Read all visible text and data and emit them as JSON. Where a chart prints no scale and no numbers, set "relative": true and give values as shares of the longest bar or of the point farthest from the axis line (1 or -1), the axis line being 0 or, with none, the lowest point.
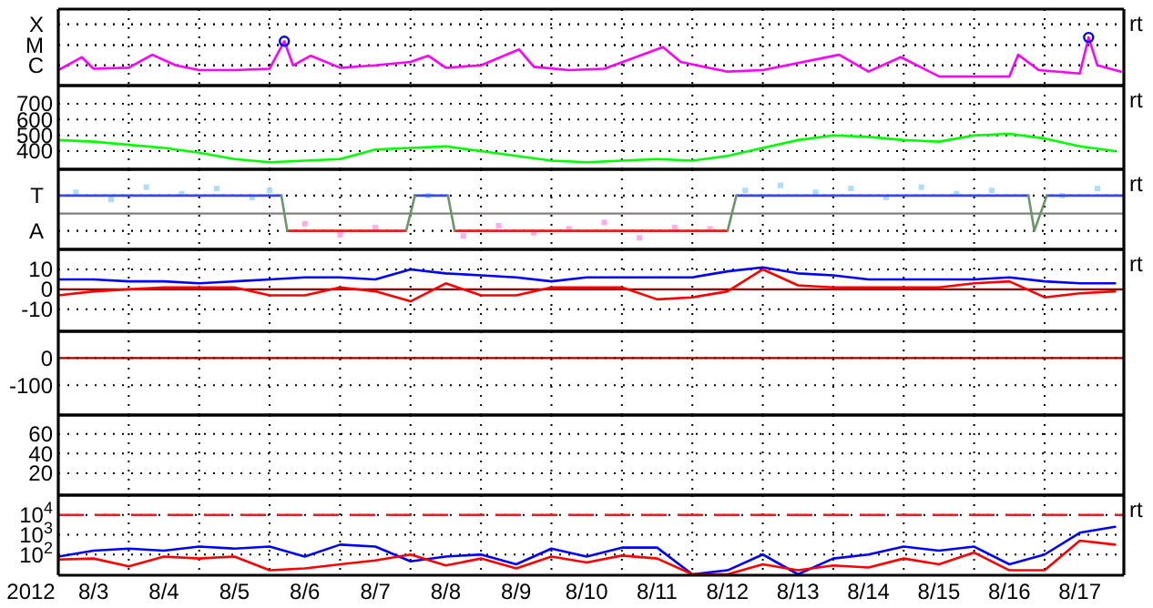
{
  "chart_data": [
    {
      "type": "line",
      "relative": true,
      "grid": true,
      "tick_labels": false,
      "xlim": [
        "2012-08-03T00:00",
        "2012-08-18T03:00"
      ],
      "xticks": [
        {
          "value": "2012-08-04T00:00",
          "label": null
        },
        {
          "value": "2012-08-05T00:00",
          "label": null
        },
        {
          "value": "2012-08-06T00:00",
          "label": null
        },
        {
          "value": "2012-08-07T00:00",
          "label": null
        },
        {
          "value": "2012-08-08T00:00",
          "label": null
        },
        {
          "value": "2012-08-09T00:00",
          "label": null
        },
        {
          "value": "2012-08-10T00:00",
          "label": null
        },
        {
          "value": "2012-08-11T00:00",
          "label": null
        },
        {
          "value": "2012-08-12T00:00",
          "label": null
        },
        {
          "value": "2012-08-13T00:00",
          "label": null
        },
        {
          "value": "2012-08-14T00:00",
          "label": null
        },
        {
          "value": "2012-08-15T00:00",
          "label": null
        },
        {
          "value": "2012-08-16T00:00",
          "label": null
        },
        {
          "value": "2012-08-17T00:00",
          "label": null
        }
      ],
      "ref_lines": [
        {
          "axis": "y",
          "value": 1.27,
          "label": "X",
          "color": "#000000",
          "line_style": "dotted"
        },
        {
          "axis": "y",
          "value": 0.84,
          "label": "M",
          "color": "#000000",
          "line_style": "dotted"
        },
        {
          "axis": "y",
          "value": 0.42,
          "label": "C",
          "color": "#000000",
          "line_style": "dotted"
        }
      ],
      "series": [
        {
          "color": "#ff00ff",
          "x": [
            "2012-08-03T00:00",
            "2012-08-03T08:00",
            "2012-08-03T12:00",
            "2012-08-04T00:00",
            "2012-08-04T08:00",
            "2012-08-04T16:00",
            "2012-08-05T00:00",
            "2012-08-05T12:00",
            "2012-08-06T00:00",
            "2012-08-06T05:00",
            "2012-08-06T08:00",
            "2012-08-06T14:00",
            "2012-08-07T00:00",
            "2012-08-07T12:00",
            "2012-08-08T00:00",
            "2012-08-08T06:00",
            "2012-08-08T12:00",
            "2012-08-09T00:00",
            "2012-08-09T13:00",
            "2012-08-09T18:00",
            "2012-08-10T06:00",
            "2012-08-10T18:00",
            "2012-08-11T14:00",
            "2012-08-11T20:00",
            "2012-08-12T12:00",
            "2012-08-13T00:00",
            "2012-08-14T02:00",
            "2012-08-14T12:00",
            "2012-08-14T23:00",
            "2012-08-15T12:00",
            "2012-08-16T12:00",
            "2012-08-16T15:00",
            "2012-08-16T22:00",
            "2012-08-17T12:00",
            "2012-08-17T15:00",
            "2012-08-17T18:00",
            "2012-08-18T02:00"
          ],
          "values": [
            0.32,
            0.59,
            0.35,
            0.37,
            0.64,
            0.42,
            0.32,
            0.32,
            0.35,
            0.92,
            0.42,
            0.62,
            0.37,
            0.42,
            0.49,
            0.62,
            0.37,
            0.42,
            0.75,
            0.39,
            0.32,
            0.35,
            0.8,
            0.49,
            0.29,
            0.32,
            0.64,
            0.29,
            0.59,
            0.19,
            0.19,
            0.64,
            0.32,
            0.25,
            1,
            0.42,
            0.29
          ]
        },
        {
          "type": "scatter",
          "marker": "circle",
          "color": "#0000ff",
          "x": [
            "2012-08-06T05:00",
            "2012-08-17T15:00"
          ],
          "values": [
            0.92,
            1
          ]
        }
      ],
      "annotations": [
        "rt"
      ]
    },
    {
      "type": "line",
      "grid": true,
      "tick_labels": "y",
      "xlim": [
        "2012-08-03T00:00",
        "2012-08-18T03:00"
      ],
      "ylim": [
        285,
        815
      ],
      "yticks": [
        400,
        500,
        600,
        700
      ],
      "xticks": [
        {
          "value": "2012-08-04T00:00",
          "label": null
        },
        {
          "value": "2012-08-05T00:00",
          "label": null
        },
        {
          "value": "2012-08-06T00:00",
          "label": null
        },
        {
          "value": "2012-08-07T00:00",
          "label": null
        },
        {
          "value": "2012-08-08T00:00",
          "label": null
        },
        {
          "value": "2012-08-09T00:00",
          "label": null
        },
        {
          "value": "2012-08-10T00:00",
          "label": null
        },
        {
          "value": "2012-08-11T00:00",
          "label": null
        },
        {
          "value": "2012-08-12T00:00",
          "label": null
        },
        {
          "value": "2012-08-13T00:00",
          "label": null
        },
        {
          "value": "2012-08-14T00:00",
          "label": null
        },
        {
          "value": "2012-08-15T00:00",
          "label": null
        },
        {
          "value": "2012-08-16T00:00",
          "label": null
        },
        {
          "value": "2012-08-17T00:00",
          "label": null
        }
      ],
      "x": [
        "2012-08-03T00:00",
        "2012-08-03T12:00",
        "2012-08-04T00:00",
        "2012-08-04T12:00",
        "2012-08-05T00:00",
        "2012-08-05T12:00",
        "2012-08-06T00:00",
        "2012-08-06T12:00",
        "2012-08-07T00:00",
        "2012-08-07T12:00",
        "2012-08-08T00:00",
        "2012-08-08T12:00",
        "2012-08-09T00:00",
        "2012-08-09T12:00",
        "2012-08-10T00:00",
        "2012-08-10T12:00",
        "2012-08-11T00:00",
        "2012-08-11T12:00",
        "2012-08-12T00:00",
        "2012-08-12T12:00",
        "2012-08-13T00:00",
        "2012-08-13T12:00",
        "2012-08-14T00:00",
        "2012-08-14T12:00",
        "2012-08-15T00:00",
        "2012-08-15T12:00",
        "2012-08-16T00:00",
        "2012-08-16T12:00",
        "2012-08-17T00:00",
        "2012-08-17T12:00",
        "2012-08-18T00:00"
      ],
      "series": [
        {
          "color": "#00ff00",
          "values": [
            470,
            460,
            440,
            420,
            390,
            350,
            330,
            340,
            350,
            410,
            420,
            430,
            400,
            370,
            340,
            330,
            340,
            350,
            340,
            370,
            420,
            470,
            500,
            490,
            470,
            460,
            500,
            510,
            480,
            430,
            400
          ]
        }
      ],
      "annotations": [
        "rt"
      ]
    },
    {
      "type": "line",
      "relative": true,
      "grid": true,
      "tick_labels": false,
      "xlim": [
        "2012-08-03T00:00",
        "2012-08-18T03:00"
      ],
      "xticks": [
        {
          "value": "2012-08-04T00:00",
          "label": null
        },
        {
          "value": "2012-08-05T00:00",
          "label": null
        },
        {
          "value": "2012-08-06T00:00",
          "label": null
        },
        {
          "value": "2012-08-07T00:00",
          "label": null
        },
        {
          "value": "2012-08-08T00:00",
          "label": null
        },
        {
          "value": "2012-08-09T00:00",
          "label": null
        },
        {
          "value": "2012-08-10T00:00",
          "label": null
        },
        {
          "value": "2012-08-11T00:00",
          "label": null
        },
        {
          "value": "2012-08-12T00:00",
          "label": null
        },
        {
          "value": "2012-08-13T00:00",
          "label": null
        },
        {
          "value": "2012-08-14T00:00",
          "label": null
        },
        {
          "value": "2012-08-15T00:00",
          "label": null
        },
        {
          "value": "2012-08-16T00:00",
          "label": null
        },
        {
          "value": "2012-08-17T00:00",
          "label": null
        }
      ],
      "ref_lines": [
        {
          "axis": "y",
          "value": 0.56,
          "color": "#808080"
        },
        {
          "axis": "y",
          "value": 0.84,
          "label": "T",
          "color": "#000000",
          "line_style": "dotted"
        },
        {
          "axis": "y",
          "value": 0.29,
          "label": "A",
          "color": "#000000",
          "line_style": "dotted"
        }
      ],
      "series": [
        {
          "type": "scatter",
          "marker": "square",
          "color": "#aaddff",
          "x": [
            "2012-08-03T06:00",
            "2012-08-03T18:00",
            "2012-08-04T06:00",
            "2012-08-04T18:00",
            "2012-08-05T06:00",
            "2012-08-05T18:00",
            "2012-08-06T00:00",
            "2012-08-08T06:00",
            "2012-08-12T18:00",
            "2012-08-13T06:00",
            "2012-08-13T18:00",
            "2012-08-14T06:00",
            "2012-08-14T18:00",
            "2012-08-15T06:00",
            "2012-08-15T18:00",
            "2012-08-16T06:00",
            "2012-08-17T06:00",
            "2012-08-17T18:00"
          ],
          "values": [
            0.89,
            0.78,
            0.97,
            0.87,
            0.95,
            0.81,
            0.92,
            0.84,
            0.92,
            1,
            0.89,
            0.95,
            0.81,
            0.97,
            0.87,
            0.92,
            0.84,
            0.95
          ]
        },
        {
          "type": "scatter",
          "marker": "square",
          "color": "#ffaaee",
          "x": [
            "2012-08-06T12:00",
            "2012-08-07T00:00",
            "2012-08-07T12:00",
            "2012-08-08T18:00",
            "2012-08-09T06:00",
            "2012-08-09T18:00",
            "2012-08-10T06:00",
            "2012-08-10T18:00",
            "2012-08-11T06:00",
            "2012-08-11T18:00",
            "2012-08-12T06:00"
          ],
          "values": [
            0.4,
            0.23,
            0.34,
            0.21,
            0.37,
            0.26,
            0.32,
            0.42,
            0.18,
            0.34,
            0.32
          ]
        },
        {
          "color": "#3344ff",
          "x": [
            "2012-08-03T00:00",
            "2012-08-06T04:00",
            "2012-08-07T00:00",
            "2012-08-08T01:30",
            "2012-08-08T12:45",
            "2012-08-10T00:00",
            "2012-08-12T15:00",
            "2012-08-16T18:30",
            "2012-08-17T00:00",
            "2012-08-17T00:45",
            "2012-08-18T03:00"
          ],
          "values": [
            0.84,
            0.84,
            null,
            0.84,
            0.84,
            null,
            0.84,
            0.84,
            null,
            0.84,
            0.84
          ]
        },
        {
          "color": "#dd2222",
          "x": [
            "2012-08-06T06:00",
            "2012-08-07T22:30",
            "2012-08-08T00:00",
            "2012-08-08T15:00",
            "2012-08-12T12:00"
          ],
          "values": [
            0.29,
            0.29,
            null,
            0.29,
            0.29
          ]
        },
        {
          "color": "#669966",
          "x": [
            "2012-08-06T04:00",
            "2012-08-06T06:00",
            "2012-08-07T00:00",
            "2012-08-07T22:30",
            "2012-08-08T01:30",
            "2012-08-08T06:00",
            "2012-08-08T12:45",
            "2012-08-08T15:00",
            "2012-08-10T00:00",
            "2012-08-12T12:00",
            "2012-08-12T15:00",
            "2012-08-14T00:00",
            "2012-08-16T18:30",
            "2012-08-16T20:30",
            "2012-08-17T00:45"
          ],
          "values": [
            0.84,
            0.29,
            null,
            0.29,
            0.84,
            null,
            0.84,
            0.29,
            null,
            0.29,
            0.84,
            null,
            0.84,
            0.29,
            0.84
          ]
        }
      ],
      "annotations": [
        "rt"
      ]
    },
    {
      "type": "line",
      "grid": true,
      "tick_labels": "y",
      "xlim": [
        "2012-08-03T00:00",
        "2012-08-18T03:00"
      ],
      "ylim": [
        -21,
        20
      ],
      "yticks": [
        10,
        0,
        -10
      ],
      "xticks": [
        {
          "value": "2012-08-04T00:00",
          "label": null
        },
        {
          "value": "2012-08-05T00:00",
          "label": null
        },
        {
          "value": "2012-08-06T00:00",
          "label": null
        },
        {
          "value": "2012-08-07T00:00",
          "label": null
        },
        {
          "value": "2012-08-08T00:00",
          "label": null
        },
        {
          "value": "2012-08-09T00:00",
          "label": null
        },
        {
          "value": "2012-08-10T00:00",
          "label": null
        },
        {
          "value": "2012-08-11T00:00",
          "label": null
        },
        {
          "value": "2012-08-12T00:00",
          "label": null
        },
        {
          "value": "2012-08-13T00:00",
          "label": null
        },
        {
          "value": "2012-08-14T00:00",
          "label": null
        },
        {
          "value": "2012-08-15T00:00",
          "label": null
        },
        {
          "value": "2012-08-16T00:00",
          "label": null
        },
        {
          "value": "2012-08-17T00:00",
          "label": null
        }
      ],
      "ref_lines": [
        {
          "axis": "y",
          "value": 0,
          "color": "#990000"
        }
      ],
      "x": [
        "2012-08-03T00:00",
        "2012-08-03T12:00",
        "2012-08-04T00:00",
        "2012-08-04T12:00",
        "2012-08-05T00:00",
        "2012-08-05T12:00",
        "2012-08-06T00:00",
        "2012-08-06T12:00",
        "2012-08-07T00:00",
        "2012-08-07T12:00",
        "2012-08-08T00:00",
        "2012-08-08T12:00",
        "2012-08-09T00:00",
        "2012-08-09T12:00",
        "2012-08-10T00:00",
        "2012-08-10T12:00",
        "2012-08-11T00:00",
        "2012-08-11T12:00",
        "2012-08-12T00:00",
        "2012-08-12T12:00",
        "2012-08-13T00:00",
        "2012-08-13T12:00",
        "2012-08-14T00:00",
        "2012-08-14T12:00",
        "2012-08-15T00:00",
        "2012-08-15T12:00",
        "2012-08-16T00:00",
        "2012-08-16T12:00",
        "2012-08-17T00:00",
        "2012-08-17T12:00",
        "2012-08-18T00:00"
      ],
      "series": [
        {
          "color": "#0000ff",
          "values": [
            5,
            5,
            4,
            4,
            3,
            4,
            5,
            6,
            6,
            5,
            10,
            8,
            7,
            6,
            4,
            6,
            6,
            6,
            6,
            9,
            11,
            8,
            7,
            5,
            5,
            5,
            5,
            6,
            4,
            3,
            3
          ]
        },
        {
          "color": "#ff0000",
          "values": [
            -3,
            -1,
            0,
            1,
            1,
            1,
            -3,
            -3,
            1,
            -1,
            -6,
            3,
            -3,
            -3,
            1,
            1,
            1,
            -5,
            -4,
            -1,
            10,
            2,
            1,
            1,
            1,
            1,
            3,
            4,
            -4,
            -2,
            -1
          ]
        }
      ],
      "annotations": [
        "rt"
      ]
    },
    {
      "type": "line",
      "grid": true,
      "tick_labels": "y",
      "xlim": [
        "2012-08-03T00:00",
        "2012-08-18T03:00"
      ],
      "ylim": [
        -209,
        98
      ],
      "yticks": [
        0,
        -100
      ],
      "xticks": [
        {
          "value": "2012-08-04T00:00",
          "label": null
        },
        {
          "value": "2012-08-05T00:00",
          "label": null
        },
        {
          "value": "2012-08-06T00:00",
          "label": null
        },
        {
          "value": "2012-08-07T00:00",
          "label": null
        },
        {
          "value": "2012-08-08T00:00",
          "label": null
        },
        {
          "value": "2012-08-09T00:00",
          "label": null
        },
        {
          "value": "2012-08-10T00:00",
          "label": null
        },
        {
          "value": "2012-08-11T00:00",
          "label": null
        },
        {
          "value": "2012-08-12T00:00",
          "label": null
        },
        {
          "value": "2012-08-13T00:00",
          "label": null
        },
        {
          "value": "2012-08-14T00:00",
          "label": null
        },
        {
          "value": "2012-08-15T00:00",
          "label": null
        },
        {
          "value": "2012-08-16T00:00",
          "label": null
        },
        {
          "value": "2012-08-17T00:00",
          "label": null
        }
      ],
      "ref_lines": [
        {
          "axis": "y",
          "value": 0,
          "color": "#990000"
        }
      ]
    },
    {
      "type": "line",
      "grid": true,
      "tick_labels": "y",
      "xlim": [
        "2012-08-03T00:00",
        "2012-08-18T03:00"
      ],
      "ylim": [
        -2,
        79
      ],
      "yticks": [
        60,
        40,
        20
      ],
      "xticks": [
        {
          "value": "2012-08-04T00:00",
          "label": null
        },
        {
          "value": "2012-08-05T00:00",
          "label": null
        },
        {
          "value": "2012-08-06T00:00",
          "label": null
        },
        {
          "value": "2012-08-07T00:00",
          "label": null
        },
        {
          "value": "2012-08-08T00:00",
          "label": null
        },
        {
          "value": "2012-08-09T00:00",
          "label": null
        },
        {
          "value": "2012-08-10T00:00",
          "label": null
        },
        {
          "value": "2012-08-11T00:00",
          "label": null
        },
        {
          "value": "2012-08-12T00:00",
          "label": null
        },
        {
          "value": "2012-08-13T00:00",
          "label": null
        },
        {
          "value": "2012-08-14T00:00",
          "label": null
        },
        {
          "value": "2012-08-15T00:00",
          "label": null
        },
        {
          "value": "2012-08-16T00:00",
          "label": null
        },
        {
          "value": "2012-08-17T00:00",
          "label": null
        }
      ]
    },
    {
      "type": "line",
      "log": "y",
      "grid": true,
      "xlim": [
        "2012-08-03T00:00",
        "2012-08-18T03:00"
      ],
      "ylim": [
        9,
        100000
      ],
      "xlabel": "2012",
      "yticks": [
        {
          "value": 10000,
          "label": "10$^{4}$"
        },
        {
          "value": 1000,
          "label": "10$^{3}$"
        },
        {
          "value": 100,
          "label": "10$^{2}$"
        }
      ],
      "xticks": [
        {
          "value": "2012-08-03T12:00",
          "label": "8/3"
        },
        {
          "value": "2012-08-04T00:00",
          "label": null
        },
        {
          "value": "2012-08-04T12:00",
          "label": "8/4"
        },
        {
          "value": "2012-08-05T00:00",
          "label": null
        },
        {
          "value": "2012-08-05T12:00",
          "label": "8/5"
        },
        {
          "value": "2012-08-06T00:00",
          "label": null
        },
        {
          "value": "2012-08-06T12:00",
          "label": "8/6"
        },
        {
          "value": "2012-08-07T00:00",
          "label": null
        },
        {
          "value": "2012-08-07T12:00",
          "label": "8/7"
        },
        {
          "value": "2012-08-08T00:00",
          "label": null
        },
        {
          "value": "2012-08-08T12:00",
          "label": "8/8"
        },
        {
          "value": "2012-08-09T00:00",
          "label": null
        },
        {
          "value": "2012-08-09T12:00",
          "label": "8/9"
        },
        {
          "value": "2012-08-10T00:00",
          "label": null
        },
        {
          "value": "2012-08-10T12:00",
          "label": "8/10"
        },
        {
          "value": "2012-08-11T00:00",
          "label": null
        },
        {
          "value": "2012-08-11T12:00",
          "label": "8/11"
        },
        {
          "value": "2012-08-12T00:00",
          "label": null
        },
        {
          "value": "2012-08-12T12:00",
          "label": "8/12"
        },
        {
          "value": "2012-08-13T00:00",
          "label": null
        },
        {
          "value": "2012-08-13T12:00",
          "label": "8/13"
        },
        {
          "value": "2012-08-14T00:00",
          "label": null
        },
        {
          "value": "2012-08-14T12:00",
          "label": "8/14"
        },
        {
          "value": "2012-08-15T00:00",
          "label": null
        },
        {
          "value": "2012-08-15T12:00",
          "label": "8/15"
        },
        {
          "value": "2012-08-16T00:00",
          "label": null
        },
        {
          "value": "2012-08-16T12:00",
          "label": "8/16"
        },
        {
          "value": "2012-08-17T00:00",
          "label": null
        },
        {
          "value": "2012-08-17T12:00",
          "label": "8/17"
        }
      ],
      "ref_lines": [
        {
          "axis": "y",
          "value": 10000,
          "color": "#dd2222",
          "line_style": "dashed"
        }
      ],
      "x": [
        "2012-08-03T00:00",
        "2012-08-03T12:00",
        "2012-08-04T00:00",
        "2012-08-04T12:00",
        "2012-08-05T00:00",
        "2012-08-05T12:00",
        "2012-08-06T00:00",
        "2012-08-06T12:00",
        "2012-08-07T00:00",
        "2012-08-07T12:00",
        "2012-08-08T00:00",
        "2012-08-08T12:00",
        "2012-08-09T00:00",
        "2012-08-09T12:00",
        "2012-08-10T00:00",
        "2012-08-10T12:00",
        "2012-08-11T00:00",
        "2012-08-11T12:00",
        "2012-08-12T00:00",
        "2012-08-12T12:00",
        "2012-08-13T00:00",
        "2012-08-13T12:00",
        "2012-08-14T00:00",
        "2012-08-14T12:00",
        "2012-08-15T00:00",
        "2012-08-15T12:00",
        "2012-08-16T00:00",
        "2012-08-16T12:00",
        "2012-08-17T00:00",
        "2012-08-17T12:00",
        "2012-08-18T00:00"
      ],
      "series": [
        {
          "color": "#0000ff",
          "values": [
            79,
            158,
            200,
            158,
            251,
            200,
            251,
            79,
            316,
            251,
            45,
            79,
            100,
            32,
            200,
            79,
            224,
            224,
            10,
            16,
            100,
            10,
            63,
            100,
            251,
            158,
            251,
            32,
            100,
            1259,
            2512
          ]
        },
        {
          "color": "#ff0000",
          "values": [
            56,
            63,
            25,
            79,
            63,
            79,
            16,
            20,
            32,
            50,
            100,
            28,
            63,
            20,
            79,
            40,
            89,
            63,
            10,
            10,
            32,
            16,
            28,
            22,
            63,
            32,
            126,
            16,
            16,
            501,
            316
          ]
        }
      ],
      "annotations": [
        "rt"
      ]
    }
  ]
}
